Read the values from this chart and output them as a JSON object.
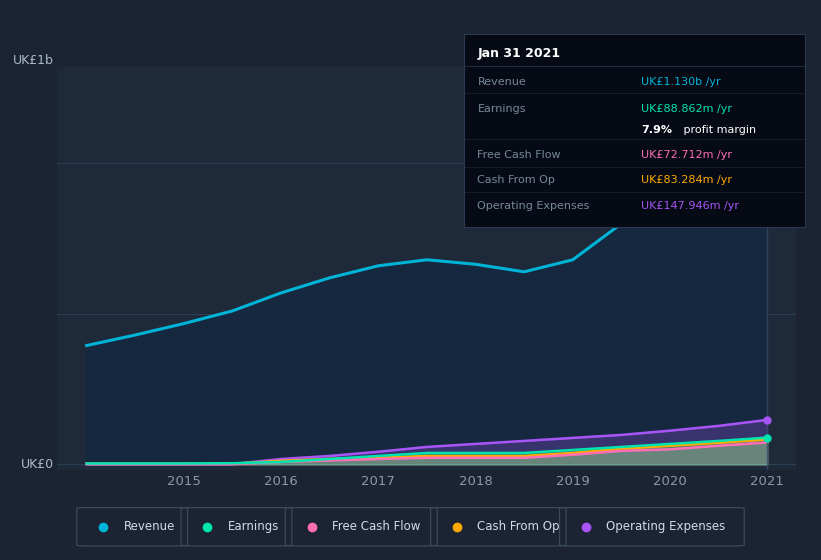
{
  "bg_color": "#1c2333",
  "plot_bg_color": "#1e2a3a",
  "grid_color": "#2a3a50",
  "years": [
    2014.0,
    2014.5,
    2015.0,
    2015.5,
    2016.0,
    2016.5,
    2017.0,
    2017.5,
    2018.0,
    2018.5,
    2019.0,
    2019.5,
    2020.0,
    2020.5,
    2021.0
  ],
  "revenue": [
    0.395,
    0.43,
    0.468,
    0.51,
    0.57,
    0.62,
    0.66,
    0.68,
    0.665,
    0.64,
    0.68,
    0.8,
    0.95,
    1.02,
    1.13
  ],
  "earnings": [
    0.003,
    0.003,
    0.003,
    0.004,
    0.008,
    0.018,
    0.028,
    0.038,
    0.038,
    0.038,
    0.048,
    0.058,
    0.068,
    0.078,
    0.0889
  ],
  "fcf": [
    0.001,
    0.001,
    0.001,
    0.001,
    0.008,
    0.013,
    0.018,
    0.022,
    0.022,
    0.022,
    0.032,
    0.045,
    0.05,
    0.062,
    0.0727
  ],
  "cashfromop": [
    0.002,
    0.002,
    0.002,
    0.002,
    0.012,
    0.018,
    0.022,
    0.028,
    0.028,
    0.028,
    0.038,
    0.052,
    0.062,
    0.072,
    0.0832
  ],
  "opex": [
    0.001,
    0.001,
    0.001,
    0.001,
    0.018,
    0.028,
    0.042,
    0.058,
    0.068,
    0.078,
    0.088,
    0.098,
    0.112,
    0.128,
    0.1479
  ],
  "revenue_color": "#00b4d8",
  "earnings_color": "#00e5b0",
  "fcf_color": "#ff6eb4",
  "cashfromop_color": "#ffaa00",
  "opex_color": "#a855f7",
  "fill_revenue_color": "#1a3a5c",
  "xlim": [
    2013.7,
    2021.3
  ],
  "ylim": [
    -0.02,
    1.32
  ],
  "xtick_years": [
    2015,
    2016,
    2017,
    2018,
    2019,
    2020,
    2021
  ],
  "legend_items": [
    "Revenue",
    "Earnings",
    "Free Cash Flow",
    "Cash From Op",
    "Operating Expenses"
  ],
  "legend_colors": [
    "#00b4d8",
    "#00e5b0",
    "#ff6eb4",
    "#ffaa00",
    "#a855f7"
  ],
  "tooltip_title": "Jan 31 2021",
  "tooltip_bg": "#050a14",
  "tooltip_border": "#2a3a50"
}
